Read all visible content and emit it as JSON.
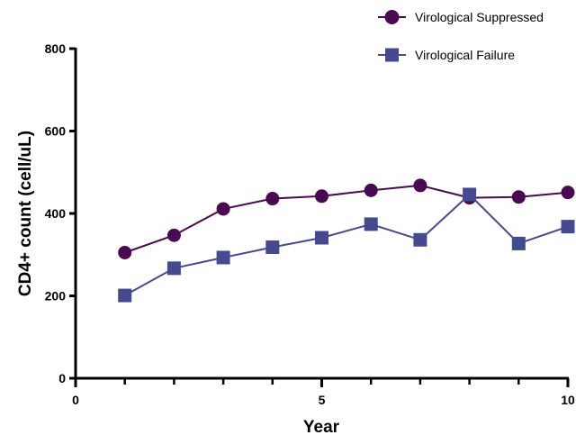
{
  "chart_data": {
    "type": "line",
    "xlabel": "Year",
    "ylabel": "CD4+ count (cell/uL)",
    "xlim": [
      0,
      10
    ],
    "ylim": [
      0,
      800
    ],
    "xticks": [
      0,
      5,
      10
    ],
    "yticks": [
      0,
      200,
      400,
      600,
      800
    ],
    "grid": false,
    "legend_position": "top-right",
    "x": [
      1,
      2,
      3,
      4,
      5,
      6,
      7,
      8,
      9,
      10
    ],
    "series": [
      {
        "name": "Virological Suppressed",
        "marker": "circle",
        "color": "#4a0a52",
        "values": [
          305,
          347,
          411,
          436,
          442,
          456,
          468,
          438,
          440,
          451
        ]
      },
      {
        "name": "Virological Failure",
        "marker": "square",
        "color": "#454a8f",
        "values": [
          201,
          267,
          293,
          318,
          341,
          374,
          336,
          446,
          327,
          368
        ]
      }
    ]
  }
}
